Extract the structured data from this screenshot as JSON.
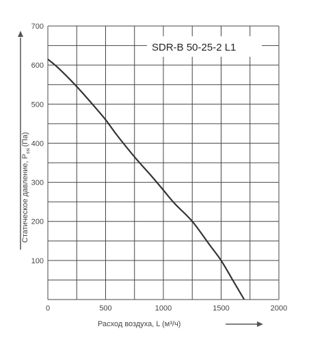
{
  "chart_data": {
    "type": "line",
    "title": "SDR-B 50-25-2 L1",
    "xlabel": "Расход воздуха, L (м³/ч)",
    "ylabel_main": "Статическое давление, P",
    "ylabel_sub": "ssi",
    "ylabel_unit": "(Па)",
    "xlim": [
      0,
      2000
    ],
    "ylim": [
      0,
      700
    ],
    "x_ticks": [
      0,
      500,
      1000,
      1500,
      2000
    ],
    "y_ticks": [
      100,
      200,
      300,
      400,
      500,
      600,
      700
    ],
    "grid": true,
    "colors": {
      "grid": "#444444",
      "curve": "#333333",
      "axis_arrow": "#555555",
      "text": "#444444"
    },
    "series": [
      {
        "x": [
          0,
          100,
          250,
          400,
          500,
          600,
          750,
          900,
          1000,
          1100,
          1250,
          1400,
          1500,
          1600,
          1700
        ],
        "y": [
          615,
          590,
          545,
          495,
          460,
          420,
          365,
          315,
          280,
          245,
          200,
          140,
          100,
          50,
          0
        ]
      }
    ]
  }
}
